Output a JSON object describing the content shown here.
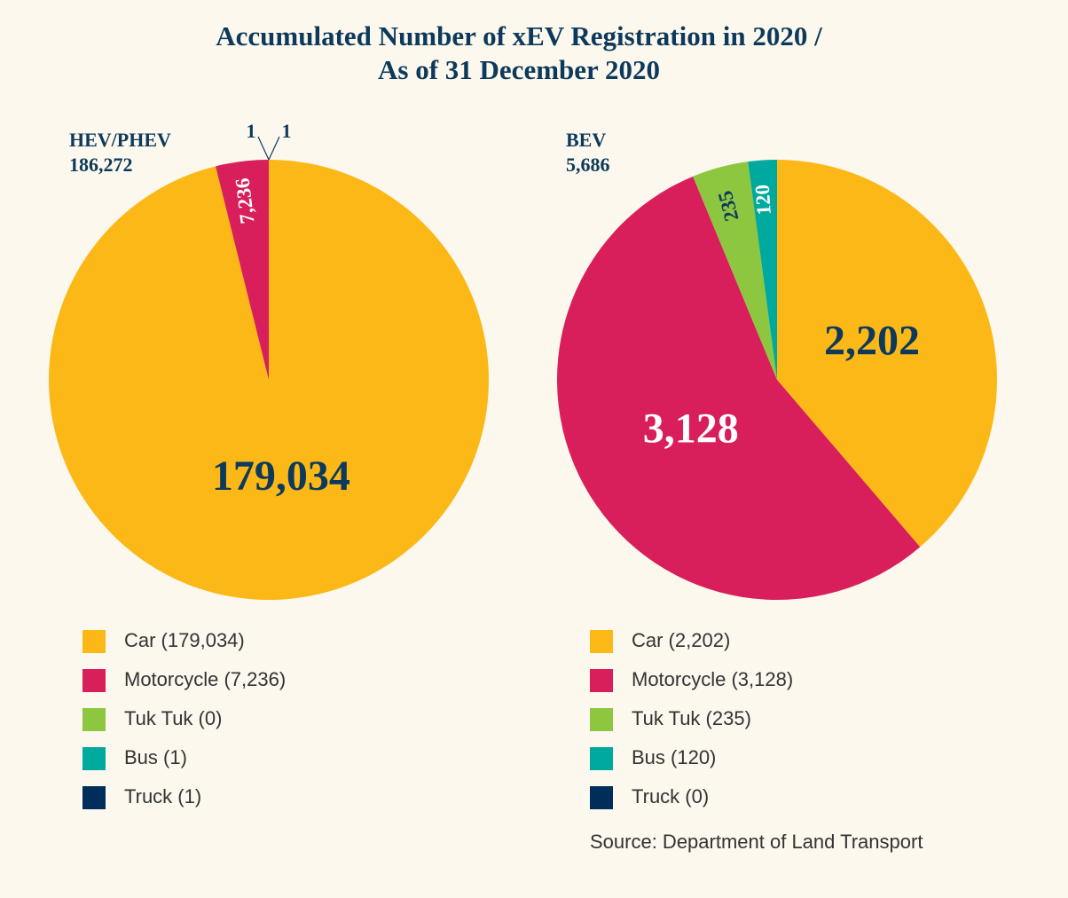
{
  "title": "Accumulated Number of xEV Registration in 2020 /",
  "subtitle": "As of 31 December 2020",
  "chart_data": [
    {
      "type": "pie",
      "title": "HEV/PHEV",
      "subtitle": "186,272",
      "categories": [
        "Car (179,034)",
        "Motorcycle (7,236)",
        "Tuk Tuk (0)",
        "Bus (1)",
        "Truck (1)"
      ],
      "values": [
        179034,
        7236,
        0,
        1,
        1
      ],
      "value_labels": [
        "179,034",
        "7,236",
        null,
        "1",
        "1"
      ],
      "colors": [
        "#fbb817",
        "#d81e5b",
        "#8dc63f",
        "#00a99d",
        "#002d5a"
      ]
    },
    {
      "type": "pie",
      "title": "BEV",
      "subtitle": "5,686",
      "categories": [
        "Car (2,202)",
        "Motorcycle (3,128)",
        "Tuk Tuk (235)",
        "Bus (120)",
        "Truck (0)"
      ],
      "values": [
        2202,
        3128,
        235,
        120,
        0
      ],
      "value_labels": [
        "2,202",
        "3,128",
        "235",
        "120",
        null
      ],
      "colors": [
        "#fbb817",
        "#d81e5b",
        "#8dc63f",
        "#00a99d",
        "#002d5a"
      ]
    }
  ],
  "source": "Source: Department of Land Transport"
}
